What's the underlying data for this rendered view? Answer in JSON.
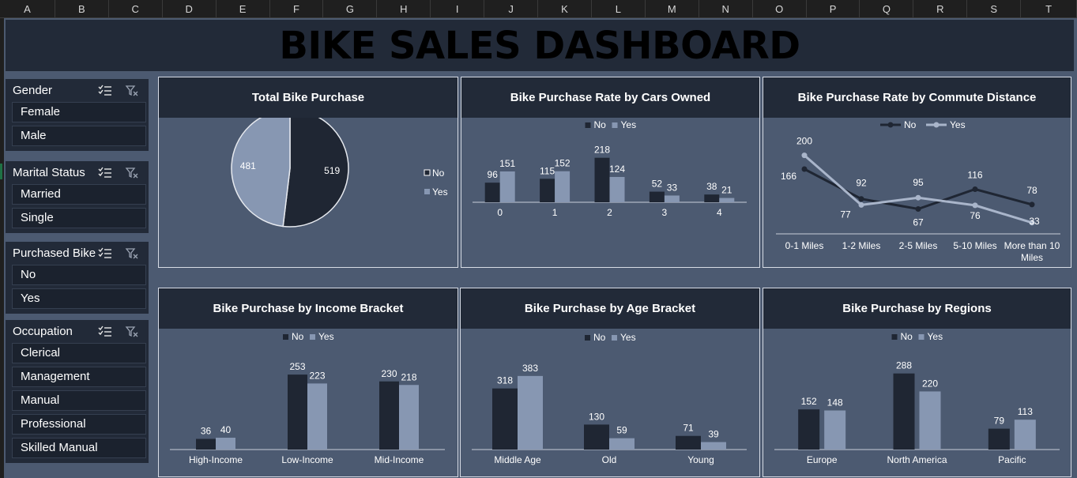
{
  "columns": [
    "A",
    "B",
    "C",
    "D",
    "E",
    "F",
    "G",
    "H",
    "I",
    "J",
    "K",
    "L",
    "M",
    "N",
    "O",
    "P",
    "Q",
    "R",
    "S",
    "T"
  ],
  "dashboard_title": "BIKE SALES DASHBOARD",
  "slicers": [
    {
      "title": "Gender",
      "items": [
        "Female",
        "Male"
      ]
    },
    {
      "title": "Marital Status",
      "items": [
        "Married",
        "Single"
      ]
    },
    {
      "title": "Purchased Bike",
      "items": [
        "No",
        "Yes"
      ]
    },
    {
      "title": "Occupation",
      "items": [
        "Clerical",
        "Management",
        "Manual",
        "Professional",
        "Skilled Manual"
      ]
    }
  ],
  "colors": {
    "no": "#1f2633",
    "yes": "#8797b2",
    "panel_bg": "#4c5a71",
    "header_bg": "#222a38"
  },
  "chart_data": [
    {
      "id": "total",
      "type": "pie",
      "title": "Total Bike Purchase",
      "categories": [
        "No",
        "Yes"
      ],
      "values": [
        519,
        481
      ]
    },
    {
      "id": "cars",
      "type": "bar",
      "title": "Bike Purchase Rate by Cars Owned",
      "categories": [
        "0",
        "1",
        "2",
        "3",
        "4"
      ],
      "series": [
        {
          "name": "No",
          "values": [
            96,
            115,
            218,
            52,
            38
          ]
        },
        {
          "name": "Yes",
          "values": [
            151,
            152,
            124,
            33,
            21
          ]
        }
      ],
      "ylim": [
        0,
        240
      ]
    },
    {
      "id": "commute",
      "type": "line",
      "title": "Bike Purchase Rate by Commute Distance",
      "categories": [
        "0-1 Miles",
        "1-2 Miles",
        "2-5 Miles",
        "5-10 Miles",
        "More than 10 Miles"
      ],
      "series": [
        {
          "name": "No",
          "values": [
            166,
            92,
            67,
            116,
            78
          ]
        },
        {
          "name": "Yes",
          "values": [
            200,
            77,
            95,
            76,
            33
          ]
        }
      ],
      "ylim": [
        0,
        220
      ]
    },
    {
      "id": "income",
      "type": "bar",
      "title": "Bike Purchase by Income Bracket",
      "categories": [
        "High-Income",
        "Low-Income",
        "Mid-Income"
      ],
      "series": [
        {
          "name": "No",
          "values": [
            36,
            253,
            230
          ]
        },
        {
          "name": "Yes",
          "values": [
            40,
            223,
            218
          ]
        }
      ],
      "ylim": [
        0,
        280
      ]
    },
    {
      "id": "age",
      "type": "bar",
      "title": "Bike Purchase by Age Bracket",
      "categories": [
        "Middle Age",
        "Old",
        "Young"
      ],
      "series": [
        {
          "name": "No",
          "values": [
            318,
            130,
            71
          ]
        },
        {
          "name": "Yes",
          "values": [
            383,
            59,
            39
          ]
        }
      ],
      "ylim": [
        0,
        440
      ]
    },
    {
      "id": "regions",
      "type": "bar",
      "title": "Bike Purchase by Regions",
      "categories": [
        "Europe",
        "North America",
        "Pacific"
      ],
      "series": [
        {
          "name": "No",
          "values": [
            152,
            288,
            79
          ]
        },
        {
          "name": "Yes",
          "values": [
            148,
            220,
            113
          ]
        }
      ],
      "ylim": [
        0,
        320
      ]
    }
  ]
}
